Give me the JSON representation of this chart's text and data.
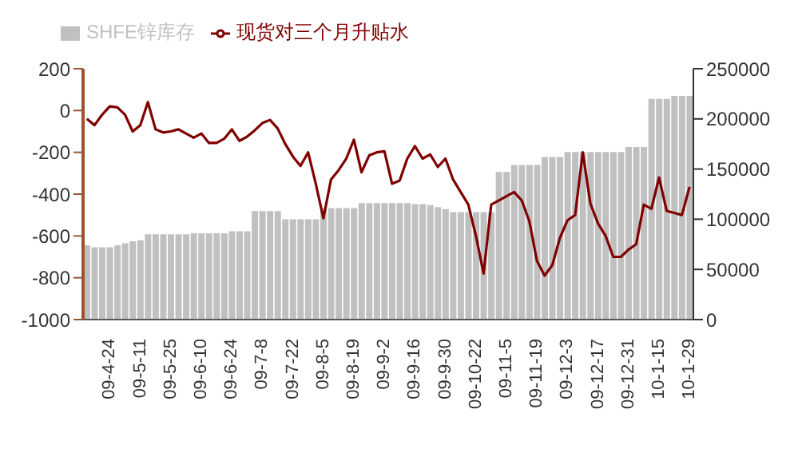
{
  "chart_data": {
    "type": "bar",
    "categories": [
      null,
      null,
      null,
      "09-4-24",
      null,
      null,
      null,
      "09-5-11",
      null,
      null,
      null,
      "09-5-25",
      null,
      null,
      null,
      "09-6-10",
      null,
      null,
      null,
      "09-6-24",
      null,
      null,
      null,
      "09-7-8",
      null,
      null,
      null,
      "09-7-22",
      null,
      null,
      null,
      "09-8-5",
      null,
      null,
      null,
      "09-8-19",
      null,
      null,
      null,
      "09-9-2",
      null,
      null,
      null,
      "09-9-16",
      null,
      null,
      null,
      "09-9-30",
      null,
      null,
      null,
      "09-10-22",
      null,
      null,
      null,
      "09-11-5",
      null,
      null,
      null,
      "09-11-19",
      null,
      null,
      null,
      "09-12-3",
      null,
      null,
      null,
      "09-12-17",
      null,
      null,
      null,
      "09-12-31",
      null,
      null,
      null,
      "10-1-15",
      null,
      null,
      null,
      "10-1-29"
    ],
    "series": [
      {
        "name": "SHFE锌库存",
        "axis": "y2",
        "color": "#c0c0c0",
        "values": [
          74000,
          72000,
          72000,
          72000,
          74000,
          76000,
          78000,
          79000,
          85000,
          85000,
          85000,
          85000,
          85000,
          85000,
          86000,
          86000,
          86000,
          86000,
          86000,
          88000,
          88000,
          88000,
          108000,
          108000,
          108000,
          108000,
          100000,
          100000,
          100000,
          100000,
          100000,
          111000,
          111000,
          111000,
          111000,
          111000,
          116000,
          116000,
          116000,
          116000,
          116000,
          116000,
          116000,
          115000,
          115000,
          114000,
          112000,
          110000,
          107000,
          107000,
          107000,
          107000,
          107000,
          107000,
          147000,
          147000,
          154000,
          154000,
          154000,
          154000,
          162000,
          162000,
          162000,
          167000,
          167000,
          167000,
          167000,
          167000,
          167000,
          167000,
          167000,
          172000,
          172000,
          172000,
          220000,
          220000,
          220000,
          223000,
          223000,
          223000
        ]
      },
      {
        "name": "现货对三个月升贴水",
        "type": "line",
        "color": "#800000",
        "values": [
          -40,
          -70,
          -20,
          20,
          15,
          -20,
          -100,
          -70,
          40,
          -90,
          -105,
          -100,
          -90,
          -110,
          -130,
          -110,
          -155,
          -155,
          -135,
          -90,
          -145,
          -125,
          -95,
          -60,
          -45,
          -85,
          -160,
          -220,
          -265,
          -200,
          -350,
          -515,
          -330,
          -285,
          -230,
          -140,
          -295,
          -215,
          -200,
          -195,
          -350,
          -335,
          -230,
          -170,
          -230,
          -210,
          -270,
          -230,
          -330,
          -390,
          -450,
          -600,
          -780,
          -450,
          -430,
          -410,
          -390,
          -430,
          -530,
          -720,
          -790,
          -740,
          -610,
          -525,
          -500,
          -200,
          -445,
          -540,
          -600,
          -700,
          -700,
          -665,
          -640,
          -450,
          -470,
          -320,
          -480,
          -490,
          -500,
          -365
        ]
      }
    ],
    "ylim": [
      -1000,
      200
    ],
    "yticks": [
      -1000,
      -800,
      -600,
      -400,
      -200,
      0,
      200
    ],
    "y2lim": [
      0,
      250000
    ],
    "y2ticks": [
      0,
      50000,
      100000,
      150000,
      200000,
      250000
    ],
    "legend": "top left",
    "marker": "none"
  }
}
